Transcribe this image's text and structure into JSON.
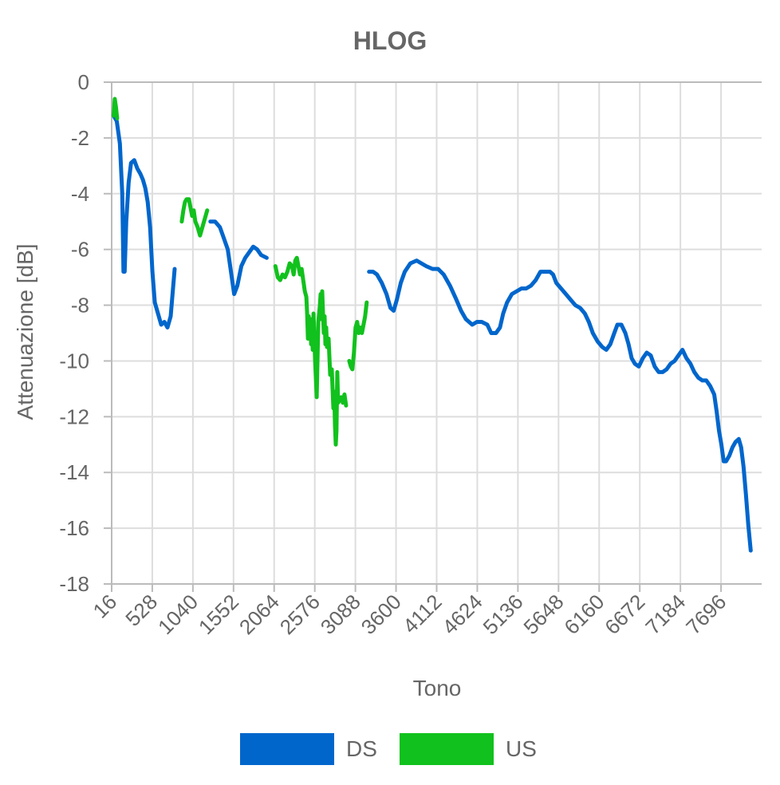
{
  "chart_data": {
    "type": "line",
    "title": "HLOG",
    "xlabel": "Tono",
    "ylabel": "Attenuazione [dB]",
    "xlim": [
      16,
      8208
    ],
    "ylim": [
      -18,
      0
    ],
    "x_ticks": [
      16,
      528,
      1040,
      1552,
      2064,
      2576,
      3088,
      3600,
      4112,
      4624,
      5136,
      5648,
      6160,
      6672,
      7184,
      7696
    ],
    "y_ticks": [
      0,
      -2,
      -4,
      -6,
      -8,
      -10,
      -12,
      -14,
      -16,
      -18
    ],
    "grid": true,
    "legend_position": "bottom",
    "series": [
      {
        "name": "DS",
        "color": "#0066cc",
        "segments": [
          [
            [
              40,
              -1.2
            ],
            [
              80,
              -1.4
            ],
            [
              120,
              -2.2
            ],
            [
              150,
              -4.0
            ],
            [
              165,
              -6.8
            ],
            [
              180,
              -6.8
            ],
            [
              200,
              -5.0
            ],
            [
              230,
              -3.6
            ],
            [
              260,
              -2.9
            ],
            [
              300,
              -2.8
            ],
            [
              340,
              -3.1
            ],
            [
              380,
              -3.3
            ],
            [
              410,
              -3.5
            ],
            [
              440,
              -3.8
            ],
            [
              470,
              -4.3
            ],
            [
              500,
              -5.2
            ],
            [
              530,
              -6.8
            ],
            [
              560,
              -7.9
            ],
            [
              600,
              -8.3
            ],
            [
              640,
              -8.7
            ],
            [
              680,
              -8.6
            ],
            [
              720,
              -8.8
            ],
            [
              760,
              -8.4
            ],
            [
              810,
              -6.7
            ]
          ],
          [
            [
              1260,
              -5.0
            ],
            [
              1320,
              -5.0
            ],
            [
              1380,
              -5.2
            ],
            [
              1430,
              -5.6
            ],
            [
              1480,
              -6.0
            ],
            [
              1520,
              -6.8
            ],
            [
              1560,
              -7.6
            ],
            [
              1600,
              -7.3
            ],
            [
              1650,
              -6.6
            ],
            [
              1700,
              -6.3
            ],
            [
              1750,
              -6.1
            ],
            [
              1800,
              -5.9
            ],
            [
              1850,
              -6.0
            ],
            [
              1900,
              -6.2
            ],
            [
              1970,
              -6.3
            ]
          ],
          [
            [
              3260,
              -6.8
            ],
            [
              3310,
              -6.8
            ],
            [
              3360,
              -6.9
            ],
            [
              3420,
              -7.2
            ],
            [
              3480,
              -7.6
            ],
            [
              3530,
              -8.1
            ],
            [
              3570,
              -8.2
            ],
            [
              3610,
              -7.8
            ],
            [
              3660,
              -7.2
            ],
            [
              3710,
              -6.8
            ],
            [
              3780,
              -6.5
            ],
            [
              3860,
              -6.4
            ],
            [
              3920,
              -6.5
            ],
            [
              3980,
              -6.6
            ],
            [
              4060,
              -6.7
            ],
            [
              4130,
              -6.7
            ],
            [
              4200,
              -6.9
            ],
            [
              4280,
              -7.3
            ],
            [
              4360,
              -7.8
            ],
            [
              4420,
              -8.2
            ],
            [
              4480,
              -8.5
            ],
            [
              4560,
              -8.7
            ],
            [
              4620,
              -8.6
            ],
            [
              4680,
              -8.6
            ],
            [
              4750,
              -8.7
            ],
            [
              4800,
              -9.0
            ],
            [
              4860,
              -9.0
            ],
            [
              4910,
              -8.8
            ],
            [
              4950,
              -8.3
            ],
            [
              5000,
              -7.9
            ],
            [
              5060,
              -7.6
            ],
            [
              5120,
              -7.5
            ],
            [
              5180,
              -7.4
            ],
            [
              5240,
              -7.4
            ],
            [
              5300,
              -7.3
            ],
            [
              5360,
              -7.1
            ],
            [
              5420,
              -6.8
            ],
            [
              5480,
              -6.8
            ],
            [
              5540,
              -6.8
            ],
            [
              5580,
              -6.9
            ],
            [
              5620,
              -7.2
            ],
            [
              5680,
              -7.4
            ],
            [
              5740,
              -7.6
            ],
            [
              5800,
              -7.8
            ],
            [
              5860,
              -8.0
            ],
            [
              5920,
              -8.1
            ],
            [
              5980,
              -8.3
            ],
            [
              6030,
              -8.6
            ],
            [
              6080,
              -9.0
            ],
            [
              6140,
              -9.3
            ],
            [
              6200,
              -9.5
            ],
            [
              6250,
              -9.6
            ],
            [
              6300,
              -9.4
            ],
            [
              6350,
              -9.0
            ],
            [
              6390,
              -8.7
            ],
            [
              6440,
              -8.7
            ],
            [
              6490,
              -9.0
            ],
            [
              6530,
              -9.4
            ],
            [
              6570,
              -9.9
            ],
            [
              6610,
              -10.1
            ],
            [
              6660,
              -10.2
            ],
            [
              6710,
              -9.9
            ],
            [
              6760,
              -9.7
            ],
            [
              6810,
              -9.8
            ],
            [
              6860,
              -10.2
            ],
            [
              6910,
              -10.4
            ],
            [
              6960,
              -10.4
            ],
            [
              7010,
              -10.3
            ],
            [
              7060,
              -10.1
            ],
            [
              7110,
              -10.0
            ],
            [
              7160,
              -9.8
            ],
            [
              7210,
              -9.6
            ],
            [
              7260,
              -9.9
            ],
            [
              7310,
              -10.1
            ],
            [
              7360,
              -10.4
            ],
            [
              7410,
              -10.6
            ],
            [
              7460,
              -10.7
            ],
            [
              7510,
              -10.7
            ],
            [
              7560,
              -10.9
            ],
            [
              7610,
              -11.2
            ],
            [
              7640,
              -11.8
            ],
            [
              7670,
              -12.5
            ],
            [
              7700,
              -13.0
            ],
            [
              7730,
              -13.6
            ],
            [
              7760,
              -13.6
            ],
            [
              7800,
              -13.4
            ],
            [
              7840,
              -13.1
            ],
            [
              7880,
              -12.9
            ],
            [
              7920,
              -12.8
            ],
            [
              7950,
              -13.1
            ],
            [
              7980,
              -13.8
            ],
            [
              8010,
              -14.8
            ],
            [
              8040,
              -15.9
            ],
            [
              8070,
              -16.8
            ]
          ]
        ]
      },
      {
        "name": "US",
        "color": "#11c11d",
        "segments": [
          [
            [
              40,
              -1.2
            ],
            [
              55,
              -0.6
            ],
            [
              70,
              -0.9
            ],
            [
              85,
              -1.3
            ]
          ],
          [
            [
              900,
              -5.0
            ],
            [
              920,
              -4.6
            ],
            [
              940,
              -4.3
            ],
            [
              960,
              -4.2
            ],
            [
              990,
              -4.2
            ],
            [
              1010,
              -4.5
            ],
            [
              1030,
              -4.8
            ],
            [
              1050,
              -4.6
            ],
            [
              1070,
              -5.0
            ],
            [
              1100,
              -5.2
            ],
            [
              1130,
              -5.5
            ],
            [
              1160,
              -5.2
            ],
            [
              1190,
              -4.9
            ],
            [
              1220,
              -4.6
            ]
          ],
          [
            [
              2080,
              -6.6
            ],
            [
              2110,
              -7.0
            ],
            [
              2140,
              -7.1
            ],
            [
              2170,
              -6.9
            ],
            [
              2200,
              -7.0
            ],
            [
              2230,
              -6.8
            ],
            [
              2260,
              -6.5
            ],
            [
              2290,
              -6.6
            ],
            [
              2310,
              -6.9
            ],
            [
              2330,
              -6.4
            ],
            [
              2350,
              -6.3
            ],
            [
              2370,
              -6.6
            ],
            [
              2390,
              -6.9
            ],
            [
              2410,
              -6.7
            ],
            [
              2430,
              -7.1
            ],
            [
              2450,
              -7.5
            ],
            [
              2470,
              -7.7
            ],
            [
              2480,
              -8.3
            ],
            [
              2490,
              -9.2
            ],
            [
              2500,
              -8.4
            ],
            [
              2510,
              -9.0
            ],
            [
              2520,
              -8.5
            ],
            [
              2530,
              -9.4
            ],
            [
              2540,
              -8.9
            ],
            [
              2550,
              -9.6
            ],
            [
              2560,
              -8.3
            ],
            [
              2580,
              -10.0
            ],
            [
              2600,
              -11.3
            ],
            [
              2620,
              -8.6
            ],
            [
              2640,
              -8.0
            ],
            [
              2650,
              -7.6
            ],
            [
              2660,
              -8.5
            ],
            [
              2670,
              -7.5
            ],
            [
              2680,
              -8.3
            ],
            [
              2690,
              -9.0
            ],
            [
              2700,
              -8.4
            ],
            [
              2710,
              -9.4
            ],
            [
              2720,
              -8.8
            ],
            [
              2730,
              -9.5
            ],
            [
              2750,
              -9.2
            ],
            [
              2770,
              -10.5
            ],
            [
              2790,
              -10.3
            ],
            [
              2800,
              -11.0
            ],
            [
              2810,
              -11.7
            ],
            [
              2820,
              -11.1
            ],
            [
              2830,
              -12.3
            ],
            [
              2840,
              -13.0
            ],
            [
              2850,
              -12.5
            ],
            [
              2860,
              -10.4
            ],
            [
              2870,
              -11.5
            ],
            [
              2890,
              -11.4
            ],
            [
              2910,
              -11.3
            ],
            [
              2930,
              -11.5
            ],
            [
              2950,
              -11.2
            ],
            [
              2970,
              -11.6
            ]
          ],
          [
            [
              3010,
              -10.0
            ],
            [
              3030,
              -10.2
            ],
            [
              3050,
              -10.3
            ],
            [
              3070,
              -9.7
            ],
            [
              3090,
              -8.8
            ],
            [
              3110,
              -8.6
            ],
            [
              3130,
              -9.0
            ],
            [
              3150,
              -8.8
            ],
            [
              3170,
              -9.0
            ],
            [
              3190,
              -8.7
            ],
            [
              3210,
              -8.4
            ],
            [
              3230,
              -7.9
            ]
          ]
        ]
      }
    ]
  }
}
